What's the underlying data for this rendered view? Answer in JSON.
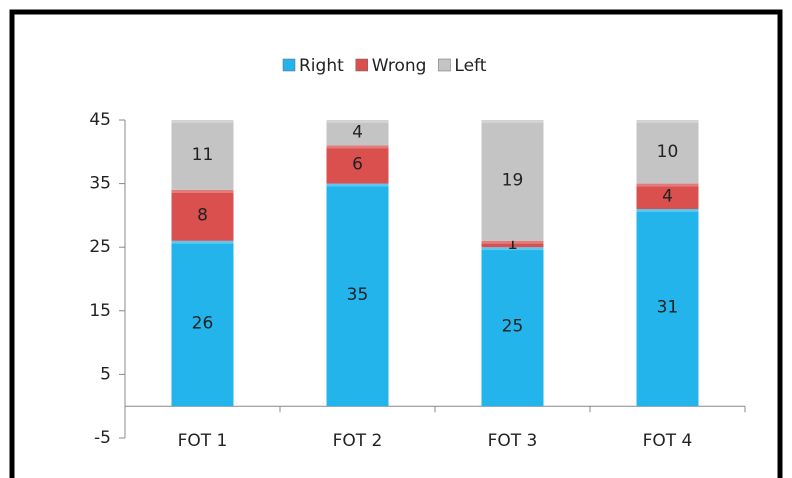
{
  "chart_data": {
    "type": "stacked_bar",
    "categories": [
      "FOT 1",
      "FOT 2",
      "FOT 3",
      "FOT 4"
    ],
    "series": [
      {
        "name": "Right",
        "color": "#22b4ea",
        "values": [
          26,
          35,
          25,
          31
        ]
      },
      {
        "name": "Wrong",
        "color": "#d9504f",
        "values": [
          8,
          6,
          1,
          4
        ]
      },
      {
        "name": "Left",
        "color": "#c4c4c4",
        "values": [
          11,
          4,
          19,
          10
        ]
      }
    ],
    "ylim": [
      -5,
      45
    ],
    "yticks": [
      -5,
      5,
      15,
      25,
      35,
      45
    ],
    "grid": false,
    "legend": "top"
  }
}
